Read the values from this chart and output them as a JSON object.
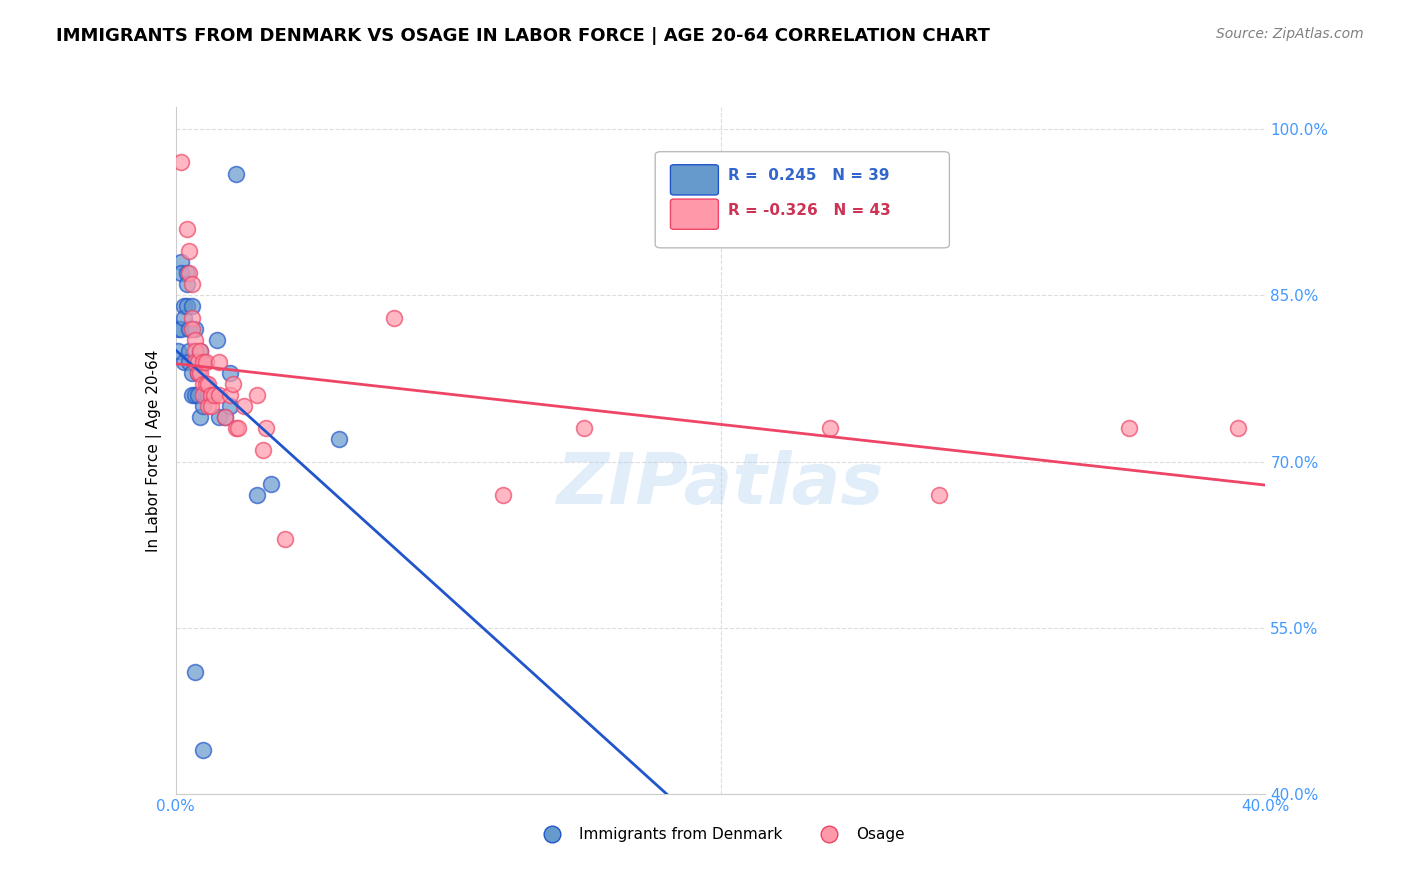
{
  "title": "IMMIGRANTS FROM DENMARK VS OSAGE IN LABOR FORCE | AGE 20-64 CORRELATION CHART",
  "source": "Source: ZipAtlas.com",
  "ylabel": "In Labor Force | Age 20-64",
  "xlim": [
    0.0,
    0.4
  ],
  "ylim": [
    0.4,
    1.02
  ],
  "xticks": [
    0.0,
    0.05,
    0.1,
    0.15,
    0.2,
    0.25,
    0.3,
    0.35,
    0.4
  ],
  "yticks": [
    0.4,
    0.55,
    0.7,
    0.85,
    1.0
  ],
  "yticklabels": [
    "40.0%",
    "55.0%",
    "70.0%",
    "85.0%",
    "100.0%"
  ],
  "legend_blue_label": "Immigrants from Denmark",
  "legend_pink_label": "Osage",
  "blue_R": 0.245,
  "blue_N": 39,
  "pink_R": -0.326,
  "pink_N": 43,
  "blue_color": "#6699CC",
  "pink_color": "#FF99AA",
  "blue_line_color": "#2255CC",
  "pink_line_color": "#EE4466",
  "watermark": "ZIPatlas",
  "blue_points": [
    [
      0.001,
      0.8
    ],
    [
      0.001,
      0.82
    ],
    [
      0.002,
      0.88
    ],
    [
      0.002,
      0.87
    ],
    [
      0.002,
      0.82
    ],
    [
      0.003,
      0.84
    ],
    [
      0.003,
      0.83
    ],
    [
      0.003,
      0.79
    ],
    [
      0.004,
      0.87
    ],
    [
      0.004,
      0.86
    ],
    [
      0.004,
      0.84
    ],
    [
      0.005,
      0.82
    ],
    [
      0.005,
      0.8
    ],
    [
      0.005,
      0.79
    ],
    [
      0.006,
      0.84
    ],
    [
      0.006,
      0.78
    ],
    [
      0.006,
      0.76
    ],
    [
      0.007,
      0.82
    ],
    [
      0.007,
      0.76
    ],
    [
      0.008,
      0.78
    ],
    [
      0.008,
      0.76
    ],
    [
      0.009,
      0.74
    ],
    [
      0.009,
      0.8
    ],
    [
      0.01,
      0.79
    ],
    [
      0.01,
      0.75
    ],
    [
      0.011,
      0.76
    ],
    [
      0.012,
      0.76
    ],
    [
      0.013,
      0.76
    ],
    [
      0.015,
      0.81
    ],
    [
      0.016,
      0.74
    ],
    [
      0.018,
      0.74
    ],
    [
      0.03,
      0.67
    ],
    [
      0.035,
      0.68
    ],
    [
      0.06,
      0.72
    ],
    [
      0.007,
      0.51
    ],
    [
      0.01,
      0.44
    ],
    [
      0.02,
      0.78
    ],
    [
      0.02,
      0.75
    ],
    [
      0.022,
      0.96
    ]
  ],
  "pink_points": [
    [
      0.002,
      0.97
    ],
    [
      0.004,
      0.91
    ],
    [
      0.005,
      0.89
    ],
    [
      0.005,
      0.87
    ],
    [
      0.006,
      0.86
    ],
    [
      0.006,
      0.83
    ],
    [
      0.006,
      0.82
    ],
    [
      0.007,
      0.81
    ],
    [
      0.007,
      0.8
    ],
    [
      0.007,
      0.79
    ],
    [
      0.008,
      0.79
    ],
    [
      0.008,
      0.78
    ],
    [
      0.009,
      0.8
    ],
    [
      0.009,
      0.78
    ],
    [
      0.01,
      0.79
    ],
    [
      0.01,
      0.77
    ],
    [
      0.01,
      0.76
    ],
    [
      0.011,
      0.79
    ],
    [
      0.011,
      0.77
    ],
    [
      0.012,
      0.77
    ],
    [
      0.012,
      0.75
    ],
    [
      0.013,
      0.76
    ],
    [
      0.013,
      0.75
    ],
    [
      0.014,
      0.76
    ],
    [
      0.016,
      0.79
    ],
    [
      0.016,
      0.76
    ],
    [
      0.018,
      0.74
    ],
    [
      0.02,
      0.76
    ],
    [
      0.021,
      0.77
    ],
    [
      0.022,
      0.73
    ],
    [
      0.023,
      0.73
    ],
    [
      0.025,
      0.75
    ],
    [
      0.03,
      0.76
    ],
    [
      0.032,
      0.71
    ],
    [
      0.033,
      0.73
    ],
    [
      0.04,
      0.63
    ],
    [
      0.08,
      0.83
    ],
    [
      0.12,
      0.67
    ],
    [
      0.15,
      0.73
    ],
    [
      0.24,
      0.73
    ],
    [
      0.28,
      0.67
    ],
    [
      0.35,
      0.73
    ],
    [
      0.39,
      0.73
    ]
  ]
}
